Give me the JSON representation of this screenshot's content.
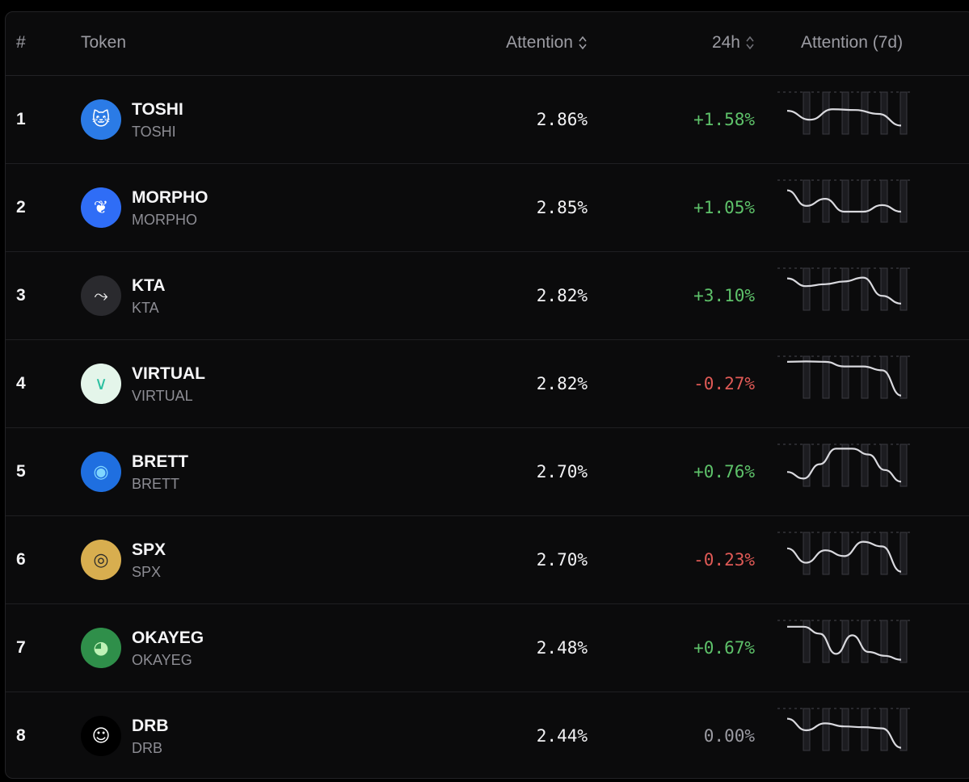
{
  "header": {
    "rank": "#",
    "token": "Token",
    "attention": "Attention",
    "change": "24h",
    "chart": "Attention (7d)"
  },
  "colors": {
    "positive": "#5ec26a",
    "negative": "#e05a56",
    "neutral": "#9c9ca3"
  },
  "rows": [
    {
      "rank": "1",
      "name": "TOSHI",
      "symbol": "TOSHI",
      "attention": "2.86%",
      "change": "+1.58%",
      "dir": "pos",
      "icon": "toshi-cat-icon",
      "avatar_bg": "#2b7be6",
      "trend": [
        0.58,
        0.35,
        0.62,
        0.6,
        0.5,
        0.2
      ]
    },
    {
      "rank": "2",
      "name": "MORPHO",
      "symbol": "MORPHO",
      "attention": "2.85%",
      "change": "+1.05%",
      "dir": "pos",
      "icon": "morpho-butterfly-icon",
      "avatar_bg": "#2f6df6",
      "trend": [
        0.8,
        0.4,
        0.58,
        0.25,
        0.25,
        0.42,
        0.25
      ]
    },
    {
      "rank": "3",
      "name": "KTA",
      "symbol": "KTA",
      "attention": "2.82%",
      "change": "+3.10%",
      "dir": "pos",
      "icon": "kta-bird-icon",
      "avatar_bg": "#2a2a2e",
      "trend": [
        0.8,
        0.6,
        0.65,
        0.72,
        0.82,
        0.35,
        0.15
      ]
    },
    {
      "rank": "4",
      "name": "VIRTUAL",
      "symbol": "VIRTUAL",
      "attention": "2.82%",
      "change": "-0.27%",
      "dir": "neg",
      "icon": "virtual-logo-icon",
      "avatar_bg": "#e4f5ea",
      "trend": [
        0.92,
        0.93,
        0.92,
        0.8,
        0.8,
        0.7,
        0.05
      ]
    },
    {
      "rank": "5",
      "name": "BRETT",
      "symbol": "BRETT",
      "attention": "2.70%",
      "change": "+0.76%",
      "dir": "pos",
      "icon": "brett-avatar-icon",
      "avatar_bg": "#1f6fe0",
      "trend": [
        0.35,
        0.18,
        0.55,
        0.95,
        0.95,
        0.8,
        0.4,
        0.1
      ]
    },
    {
      "rank": "6",
      "name": "SPX",
      "symbol": "SPX",
      "attention": "2.70%",
      "change": "-0.23%",
      "dir": "neg",
      "icon": "spx-coin-icon",
      "avatar_bg": "#d8ae4f",
      "trend": [
        0.65,
        0.28,
        0.6,
        0.45,
        0.82,
        0.7,
        0.05
      ]
    },
    {
      "rank": "7",
      "name": "OKAYEG",
      "symbol": "OKAYEG",
      "attention": "2.48%",
      "change": "+0.67%",
      "dir": "pos",
      "icon": "okayeg-frog-icon",
      "avatar_bg": "#2f8f4a",
      "trend": [
        0.9,
        0.9,
        0.72,
        0.2,
        0.68,
        0.25,
        0.15,
        0.05
      ]
    },
    {
      "rank": "8",
      "name": "DRB",
      "symbol": "DRB",
      "attention": "2.44%",
      "change": "0.00%",
      "dir": "zero",
      "icon": "drb-face-icon",
      "avatar_bg": "#000000",
      "trend": [
        0.8,
        0.5,
        0.68,
        0.6,
        0.58,
        0.55,
        0.05
      ]
    }
  ]
}
